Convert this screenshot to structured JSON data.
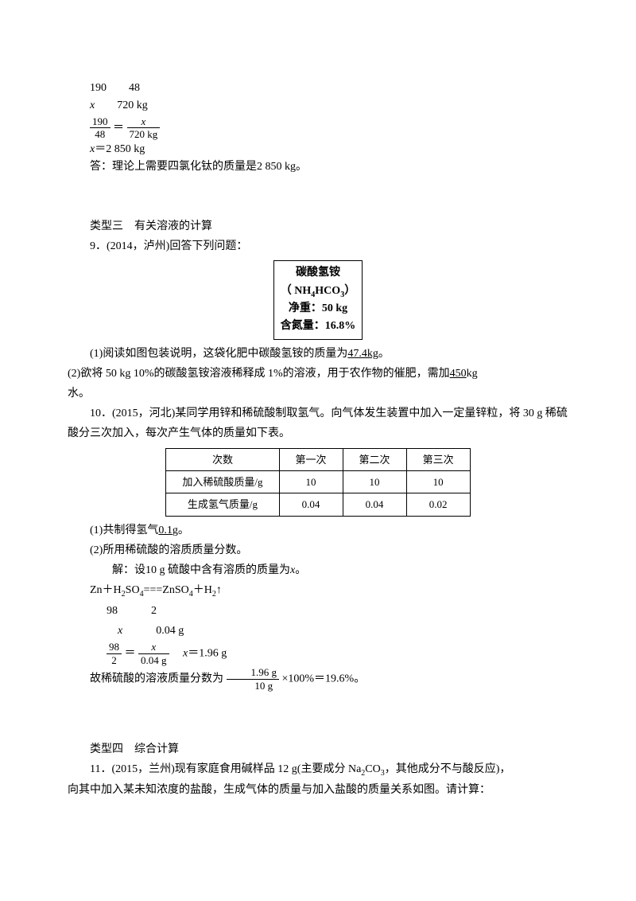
{
  "calc1": {
    "row1": "190　　48",
    "row2_x": "x",
    "row2_val": "720 kg",
    "frac1_num": "190",
    "frac1_den": "48",
    "frac2_num": "x",
    "frac2_den": "720 kg",
    "result": "x＝2 850 kg",
    "answer": "答：理论上需要四氯化钛的质量是2 850 kg。"
  },
  "section3": {
    "title": "类型三　有关溶液的计算",
    "q9_intro": "9．(2014，泸州)回答下列问题：",
    "box": {
      "l1": "碳酸氢铵",
      "l2a": "（ NH",
      "l2b": "4",
      "l2c": "HCO",
      "l2d": "3",
      "l2e": "）",
      "l3": "净重：50 kg",
      "l4": "含氮量：16.8%"
    },
    "q9_1a": "(1)阅读如图包装说明，这袋化肥中碳酸氢铵的质量为",
    "q9_1_ans": "47.4kg",
    "q9_1b": "。",
    "q9_2a": "(2)欲将 50 kg 10%的碳酸氢铵溶液稀释成 1%的溶液，用于农作物的催肥，需加",
    "q9_2_ans": "450",
    "q9_2b": "kg",
    "q9_2c": "水。"
  },
  "q10": {
    "intro": "10．(2015，河北)某同学用锌和稀硫酸制取氢气。向气体发生装置中加入一定量锌粒，将 30 g 稀硫酸分三次加入，每次产生气体的质量如下表。",
    "table": {
      "h1": "次数",
      "h2": "第一次",
      "h3": "第二次",
      "h4": "第三次",
      "r1c1": "加入稀硫酸质量/g",
      "r1c2": "10",
      "r1c3": "10",
      "r1c4": "10",
      "r2c1": "生成氢气质量/g",
      "r2c2": "0.04",
      "r2c3": "0.04",
      "r2c4": "0.02"
    },
    "p1a": "(1)共制得氢气",
    "p1_ans": "0.1",
    "p1b": "g。",
    "p2": "(2)所用稀硫酸的溶质质量分数。",
    "sol_intro": "解：设10 g 硫酸中含有溶质的质量为",
    "sol_intro_x": "x",
    "sol_intro_end": "。",
    "eq": "Zn＋H",
    "eq_sub1": "2",
    "eq2": "SO",
    "eq_sub2": "4",
    "eq3": "===ZnSO",
    "eq_sub3": "4",
    "eq4": "＋H",
    "eq_sub4": "2",
    "eq5": "↑",
    "row1_a": "98",
    "row1_b": "2",
    "row2_a": "x",
    "row2_b": "0.04 g",
    "frac1_num": "98",
    "frac1_den": "2",
    "frac2_num": "x",
    "frac2_den": "0.04 g",
    "result": "x＝1.96 g",
    "final_a": "故稀硫酸的溶液质量分数为",
    "final_frac_num": "1.96 g",
    "final_frac_den": "10 g",
    "final_b": "×100%＝19.6%。"
  },
  "section4": {
    "title": "类型四　综合计算",
    "q11a": "11．(2015，兰州)现有家庭食用碱样品 12 g(主要成分 Na",
    "q11_sub1": "2",
    "q11b": "CO",
    "q11_sub2": "3",
    "q11c": "，其他成分不与酸反应)，",
    "q11d": "向其中加入某未知浓度的盐酸，生成气体的质量与加入盐酸的质量关系如图。请计算："
  }
}
